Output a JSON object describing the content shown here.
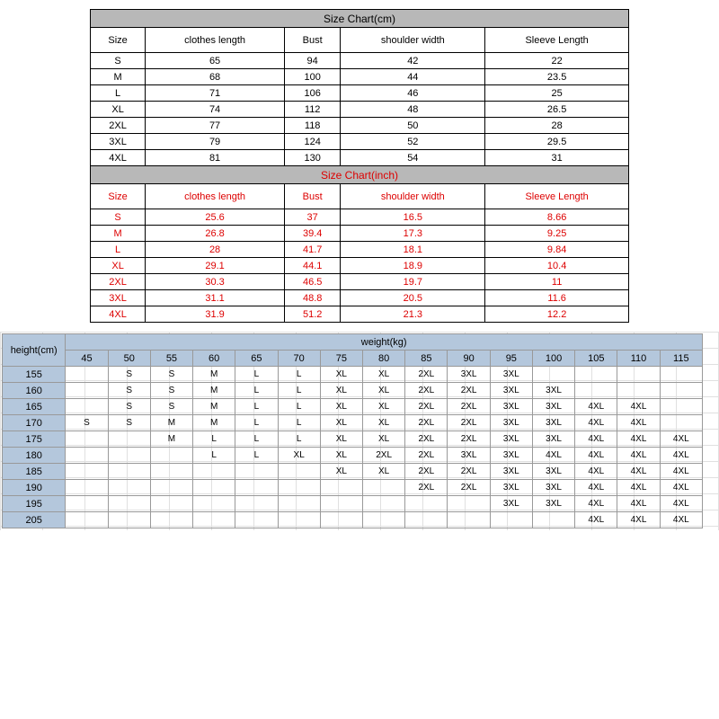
{
  "cm_table": {
    "title": "Size Chart(cm)",
    "columns": [
      "Size",
      "clothes length",
      "Bust",
      "shoulder width",
      "Sleeve Length"
    ],
    "rows": [
      [
        "S",
        "65",
        "94",
        "42",
        "22"
      ],
      [
        "M",
        "68",
        "100",
        "44",
        "23.5"
      ],
      [
        "L",
        "71",
        "106",
        "46",
        "25"
      ],
      [
        "XL",
        "74",
        "112",
        "48",
        "26.5"
      ],
      [
        "2XL",
        "77",
        "118",
        "50",
        "28"
      ],
      [
        "3XL",
        "79",
        "124",
        "52",
        "29.5"
      ],
      [
        "4XL",
        "81",
        "130",
        "54",
        "31"
      ]
    ],
    "title_bg": "#b8b8b8",
    "text_color": "#000000"
  },
  "inch_table": {
    "title": "Size Chart(inch)",
    "columns": [
      "Size",
      "clothes length",
      "Bust",
      "shoulder width",
      "Sleeve Length"
    ],
    "rows": [
      [
        "S",
        "25.6",
        "37",
        "16.5",
        "8.66"
      ],
      [
        "M",
        "26.8",
        "39.4",
        "17.3",
        "9.25"
      ],
      [
        "L",
        "28",
        "41.7",
        "18.1",
        "9.84"
      ],
      [
        "XL",
        "29.1",
        "44.1",
        "18.9",
        "10.4"
      ],
      [
        "2XL",
        "30.3",
        "46.5",
        "19.7",
        "11"
      ],
      [
        "3XL",
        "31.1",
        "48.8",
        "20.5",
        "11.6"
      ],
      [
        "4XL",
        "31.9",
        "51.2",
        "21.3",
        "12.2"
      ]
    ],
    "title_bg": "#b8b8b8",
    "text_color": "#dd0000"
  },
  "hw_table": {
    "height_label": "height(cm)",
    "weight_label": "weight(kg)",
    "weights": [
      "45",
      "50",
      "55",
      "60",
      "65",
      "70",
      "75",
      "80",
      "85",
      "90",
      "95",
      "100",
      "105",
      "110",
      "115"
    ],
    "heights": [
      "155",
      "160",
      "165",
      "170",
      "175",
      "180",
      "185",
      "190",
      "195",
      "205"
    ],
    "grid": [
      [
        "",
        "S",
        "S",
        "M",
        "L",
        "L",
        "XL",
        "XL",
        "2XL",
        "3XL",
        "3XL",
        "",
        "",
        "",
        ""
      ],
      [
        "",
        "S",
        "S",
        "M",
        "L",
        "L",
        "XL",
        "XL",
        "2XL",
        "2XL",
        "3XL",
        "3XL",
        "",
        "",
        ""
      ],
      [
        "",
        "S",
        "S",
        "M",
        "L",
        "L",
        "XL",
        "XL",
        "2XL",
        "2XL",
        "3XL",
        "3XL",
        "4XL",
        "4XL",
        ""
      ],
      [
        "S",
        "S",
        "M",
        "M",
        "L",
        "L",
        "XL",
        "XL",
        "2XL",
        "2XL",
        "3XL",
        "3XL",
        "4XL",
        "4XL",
        ""
      ],
      [
        "",
        "",
        "M",
        "L",
        "L",
        "L",
        "XL",
        "XL",
        "2XL",
        "2XL",
        "3XL",
        "3XL",
        "4XL",
        "4XL",
        "4XL"
      ],
      [
        "",
        "",
        "",
        "L",
        "L",
        "XL",
        "XL",
        "2XL",
        "2XL",
        "3XL",
        "3XL",
        "4XL",
        "4XL",
        "4XL",
        "4XL"
      ],
      [
        "",
        "",
        "",
        "",
        "",
        "",
        "XL",
        "XL",
        "2XL",
        "2XL",
        "3XL",
        "3XL",
        "4XL",
        "4XL",
        "4XL"
      ],
      [
        "",
        "",
        "",
        "",
        "",
        "",
        "",
        "",
        "2XL",
        "2XL",
        "3XL",
        "3XL",
        "4XL",
        "4XL",
        "4XL"
      ],
      [
        "",
        "",
        "",
        "",
        "",
        "",
        "",
        "",
        "",
        "",
        "3XL",
        "3XL",
        "4XL",
        "4XL",
        "4XL"
      ],
      [
        "",
        "",
        "",
        "",
        "",
        "",
        "",
        "",
        "",
        "",
        "",
        "",
        "4XL",
        "4XL",
        "4XL"
      ]
    ],
    "header_bg": "#b4c7dc",
    "border_color": "#999999"
  }
}
